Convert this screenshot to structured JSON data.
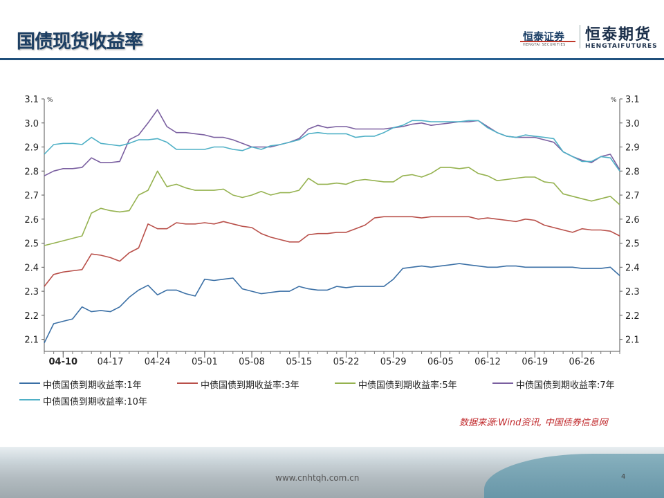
{
  "slide": {
    "title": "国债现货收益率",
    "logo_securities_cn": "恒泰证券",
    "logo_securities_en": "HENGTAI SECURITIES",
    "logo_futures_cn": "恒泰期货",
    "logo_futures_en": "HENGTAIFUTURES",
    "source": "数据来源:Wind资讯, 中国债券信息网",
    "footer_url": "www.cnhtqh.com.cn",
    "page_number": "4"
  },
  "chart_data": {
    "type": "line",
    "title": "",
    "xlabel": "",
    "ylabel_left": "%",
    "ylabel_right": "%",
    "ylim": [
      2.05,
      3.1
    ],
    "yticks": [
      "2.1",
      "2.2",
      "2.3",
      "2.4",
      "2.5",
      "2.6",
      "2.7",
      "2.8",
      "2.9",
      "3.0",
      "3.1"
    ],
    "categories": [
      "04-06",
      "04-07",
      "04-10",
      "04-11",
      "04-12",
      "04-13",
      "04-14",
      "04-17",
      "04-18",
      "04-19",
      "04-20",
      "04-21",
      "04-24",
      "04-25",
      "04-26",
      "04-27",
      "04-28",
      "05-01",
      "05-02",
      "05-03",
      "05-04",
      "05-05",
      "05-08",
      "05-09",
      "05-10",
      "05-11",
      "05-12",
      "05-15",
      "05-16",
      "05-17",
      "05-18",
      "05-19",
      "05-22",
      "05-23",
      "05-24",
      "05-25",
      "05-26",
      "05-29",
      "05-30",
      "05-31",
      "06-01",
      "06-02",
      "06-05",
      "06-06",
      "06-07",
      "06-08",
      "06-09",
      "06-12",
      "06-13",
      "06-14",
      "06-15",
      "06-16",
      "06-19",
      "06-20",
      "06-21",
      "06-22",
      "06-23",
      "06-26",
      "06-27",
      "06-28",
      "06-29",
      "06-30"
    ],
    "xtick_labels": [
      "04-10",
      "04-17",
      "04-24",
      "05-01",
      "05-08",
      "05-15",
      "05-22",
      "05-29",
      "06-05",
      "06-12",
      "06-19",
      "06-26"
    ],
    "legend_position": "bottom",
    "series": [
      {
        "name": "中债国债到期收益率:1年",
        "color": "#3a6fa5",
        "values": [
          2.085,
          2.165,
          2.175,
          2.185,
          2.235,
          2.215,
          2.22,
          2.215,
          2.235,
          2.275,
          2.305,
          2.325,
          2.285,
          2.305,
          2.305,
          2.29,
          2.28,
          2.35,
          2.345,
          2.35,
          2.355,
          2.31,
          2.3,
          2.29,
          2.295,
          2.3,
          2.3,
          2.32,
          2.31,
          2.305,
          2.305,
          2.32,
          2.315,
          2.32,
          2.32,
          2.32,
          2.32,
          2.35,
          2.395,
          2.4,
          2.405,
          2.4,
          2.405,
          2.41,
          2.415,
          2.41,
          2.405,
          2.4,
          2.4,
          2.405,
          2.405,
          2.4,
          2.4,
          2.4,
          2.4,
          2.4,
          2.4,
          2.395,
          2.395,
          2.395,
          2.4,
          2.365
        ]
      },
      {
        "name": "中债国债到期收益率:3年",
        "color": "#b9504a",
        "values": [
          2.32,
          2.37,
          2.38,
          2.385,
          2.39,
          2.455,
          2.45,
          2.44,
          2.425,
          2.46,
          2.48,
          2.58,
          2.56,
          2.56,
          2.585,
          2.58,
          2.58,
          2.585,
          2.58,
          2.59,
          2.58,
          2.57,
          2.565,
          2.54,
          2.525,
          2.515,
          2.505,
          2.505,
          2.535,
          2.54,
          2.54,
          2.545,
          2.545,
          2.56,
          2.575,
          2.605,
          2.61,
          2.61,
          2.61,
          2.61,
          2.605,
          2.61,
          2.61,
          2.61,
          2.61,
          2.61,
          2.6,
          2.605,
          2.6,
          2.595,
          2.59,
          2.6,
          2.595,
          2.575,
          2.565,
          2.555,
          2.545,
          2.56,
          2.555,
          2.555,
          2.55,
          2.53
        ]
      },
      {
        "name": "中债国债到期收益率:5年",
        "color": "#95b24f",
        "values": [
          2.49,
          2.5,
          2.51,
          2.52,
          2.53,
          2.625,
          2.645,
          2.635,
          2.63,
          2.635,
          2.7,
          2.72,
          2.8,
          2.735,
          2.745,
          2.73,
          2.72,
          2.72,
          2.72,
          2.725,
          2.7,
          2.69,
          2.7,
          2.715,
          2.7,
          2.71,
          2.71,
          2.72,
          2.77,
          2.745,
          2.745,
          2.75,
          2.745,
          2.76,
          2.765,
          2.76,
          2.755,
          2.755,
          2.78,
          2.785,
          2.775,
          2.79,
          2.815,
          2.815,
          2.81,
          2.815,
          2.79,
          2.78,
          2.76,
          2.765,
          2.77,
          2.775,
          2.775,
          2.755,
          2.75,
          2.705,
          2.695,
          2.685,
          2.675,
          2.685,
          2.695,
          2.66
        ]
      },
      {
        "name": "中债国债到期收益率:7年",
        "color": "#7a5fa0",
        "values": [
          2.78,
          2.8,
          2.81,
          2.81,
          2.815,
          2.855,
          2.835,
          2.835,
          2.84,
          2.93,
          2.95,
          3.0,
          3.055,
          2.985,
          2.96,
          2.96,
          2.955,
          2.95,
          2.94,
          2.94,
          2.93,
          2.915,
          2.9,
          2.9,
          2.9,
          2.91,
          2.92,
          2.935,
          2.975,
          2.99,
          2.98,
          2.985,
          2.985,
          2.975,
          2.975,
          2.975,
          2.975,
          2.98,
          2.985,
          2.995,
          3.0,
          2.99,
          2.995,
          3.0,
          3.005,
          3.005,
          3.01,
          2.985,
          2.96,
          2.945,
          2.94,
          2.94,
          2.94,
          2.93,
          2.92,
          2.88,
          2.86,
          2.845,
          2.835,
          2.86,
          2.87,
          2.805
        ]
      },
      {
        "name": "中债国债到期收益率:10年",
        "color": "#4fb0c6",
        "values": [
          2.87,
          2.91,
          2.915,
          2.915,
          2.91,
          2.94,
          2.915,
          2.91,
          2.905,
          2.915,
          2.93,
          2.93,
          2.935,
          2.92,
          2.89,
          2.89,
          2.89,
          2.89,
          2.9,
          2.9,
          2.89,
          2.885,
          2.9,
          2.89,
          2.905,
          2.91,
          2.92,
          2.93,
          2.955,
          2.96,
          2.955,
          2.955,
          2.955,
          2.94,
          2.945,
          2.945,
          2.96,
          2.98,
          2.99,
          3.01,
          3.01,
          3.005,
          3.005,
          3.005,
          3.005,
          3.01,
          3.01,
          2.98,
          2.96,
          2.945,
          2.94,
          2.95,
          2.945,
          2.94,
          2.935,
          2.88,
          2.86,
          2.84,
          2.84,
          2.86,
          2.855,
          2.8
        ]
      }
    ]
  }
}
